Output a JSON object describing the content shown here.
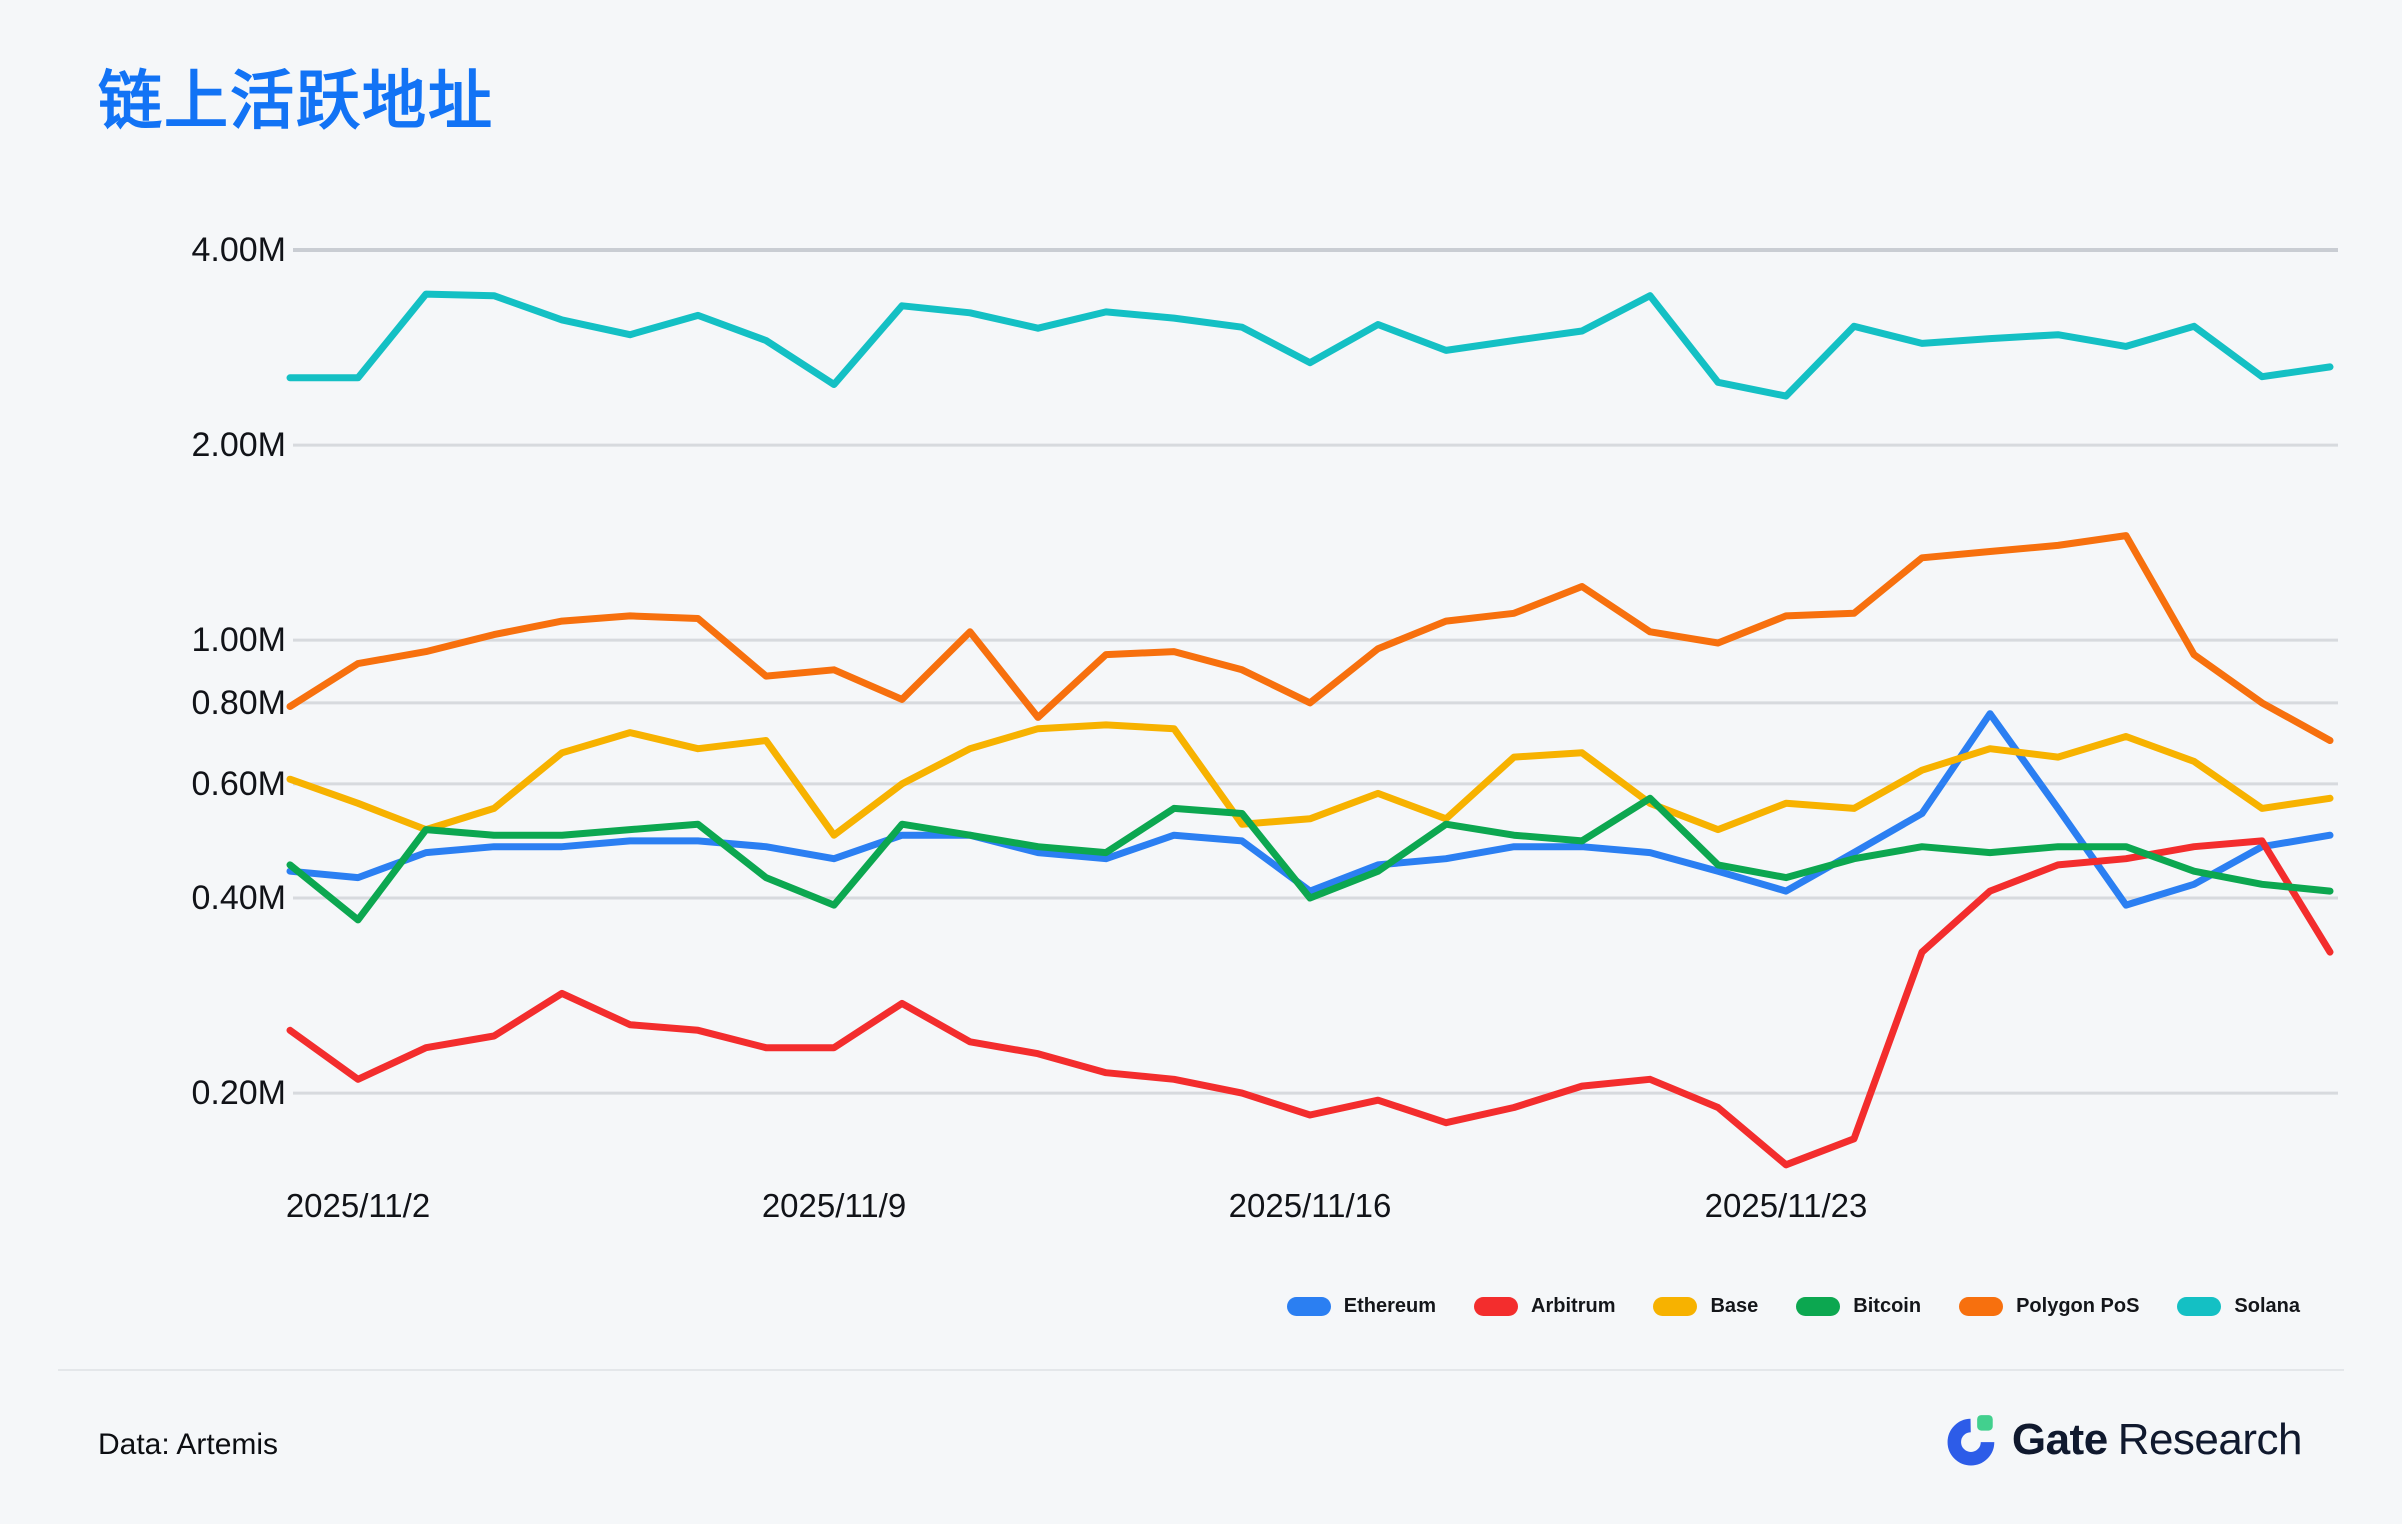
{
  "page": {
    "background": "#f5f7f9"
  },
  "title": "链上活跃地址",
  "title_color": "#1273f5",
  "footer": {
    "source_label": "Data: Artemis",
    "brand": {
      "name_bold": "Gate",
      "name_regular": "Research"
    }
  },
  "chart_data": {
    "type": "line",
    "title": "链上活跃地址",
    "xlabel": "",
    "ylabel": "",
    "unit": "M",
    "y_scale": "log",
    "grid": "horizontal",
    "legend_position": "bottom-right",
    "ylim": [
      0.15,
      4.5
    ],
    "y_ticks": [
      "4.00M",
      "2.00M",
      "1.00M",
      "0.80M",
      "0.60M",
      "0.40M",
      "0.20M"
    ],
    "y_tick_values": [
      4,
      2,
      1,
      0.8,
      0.6,
      0.4,
      0.2
    ],
    "x_tick_labels": [
      "2025/11/2",
      "2025/11/9",
      "2025/11/16",
      "2025/11/23"
    ],
    "x_tick_indices": [
      1,
      8,
      15,
      22
    ],
    "x": [
      "2025/11/1",
      "2025/11/2",
      "2025/11/3",
      "2025/11/4",
      "2025/11/5",
      "2025/11/6",
      "2025/11/7",
      "2025/11/8",
      "2025/11/9",
      "2025/11/10",
      "2025/11/11",
      "2025/11/12",
      "2025/11/13",
      "2025/11/14",
      "2025/11/15",
      "2025/11/16",
      "2025/11/17",
      "2025/11/18",
      "2025/11/19",
      "2025/11/20",
      "2025/11/21",
      "2025/11/22",
      "2025/11/23",
      "2025/11/24",
      "2025/11/25",
      "2025/11/26",
      "2025/11/27",
      "2025/11/28",
      "2025/11/29",
      "2025/11/30",
      "2025/12/1"
    ],
    "series": [
      {
        "name": "Ethereum",
        "color": "#2b7ff2",
        "values": [
          0.44,
          0.43,
          0.47,
          0.48,
          0.48,
          0.49,
          0.49,
          0.48,
          0.46,
          0.5,
          0.5,
          0.47,
          0.46,
          0.5,
          0.49,
          0.41,
          0.45,
          0.46,
          0.48,
          0.48,
          0.47,
          0.44,
          0.41,
          0.47,
          0.54,
          0.77,
          0.55,
          0.39,
          0.42,
          0.48,
          0.5
        ]
      },
      {
        "name": "Arbitrum",
        "color": "#f32d2d",
        "values": [
          0.25,
          0.21,
          0.235,
          0.245,
          0.285,
          0.255,
          0.25,
          0.235,
          0.235,
          0.275,
          0.24,
          0.23,
          0.215,
          0.21,
          0.2,
          0.185,
          0.195,
          0.18,
          0.19,
          0.205,
          0.21,
          0.19,
          0.155,
          0.17,
          0.33,
          0.41,
          0.45,
          0.46,
          0.48,
          0.49,
          0.33
        ]
      },
      {
        "name": "Base",
        "color": "#f7b200",
        "values": [
          0.61,
          0.56,
          0.51,
          0.55,
          0.67,
          0.72,
          0.68,
          0.7,
          0.5,
          0.6,
          0.68,
          0.73,
          0.74,
          0.73,
          0.52,
          0.53,
          0.58,
          0.53,
          0.66,
          0.67,
          0.56,
          0.51,
          0.56,
          0.55,
          0.63,
          0.68,
          0.66,
          0.71,
          0.65,
          0.55,
          0.57
        ]
      },
      {
        "name": "Bitcoin",
        "color": "#0ca750",
        "values": [
          0.45,
          0.37,
          0.51,
          0.5,
          0.5,
          0.51,
          0.52,
          0.43,
          0.39,
          0.52,
          0.5,
          0.48,
          0.47,
          0.55,
          0.54,
          0.4,
          0.44,
          0.52,
          0.5,
          0.49,
          0.57,
          0.45,
          0.43,
          0.46,
          0.48,
          0.47,
          0.48,
          0.48,
          0.44,
          0.42,
          0.41
        ]
      },
      {
        "name": "Polygon PoS",
        "color": "#f7700e",
        "values": [
          0.79,
          0.92,
          0.96,
          1.02,
          1.07,
          1.09,
          1.08,
          0.88,
          0.9,
          0.81,
          1.03,
          0.76,
          0.95,
          0.96,
          0.9,
          0.8,
          0.97,
          1.07,
          1.1,
          1.21,
          1.03,
          0.99,
          1.09,
          1.1,
          1.34,
          1.37,
          1.4,
          1.45,
          0.95,
          0.8,
          0.7
        ]
      },
      {
        "name": "Solana",
        "color": "#14c0c4",
        "values": [
          2.54,
          2.54,
          3.42,
          3.4,
          3.12,
          2.96,
          3.17,
          2.9,
          2.48,
          3.28,
          3.2,
          3.03,
          3.21,
          3.14,
          3.04,
          2.68,
          3.07,
          2.8,
          2.9,
          3.0,
          3.4,
          2.5,
          2.38,
          3.05,
          2.87,
          2.92,
          2.96,
          2.84,
          3.05,
          2.55,
          2.64
        ]
      }
    ],
    "colors": {
      "grid_major": "#c9cdd3",
      "grid_minor": "#d7dade",
      "axis_text": "#111318",
      "brand_blue": "#2d5ce8",
      "brand_green": "#42d08e",
      "brand_navy": "#10192e"
    }
  }
}
